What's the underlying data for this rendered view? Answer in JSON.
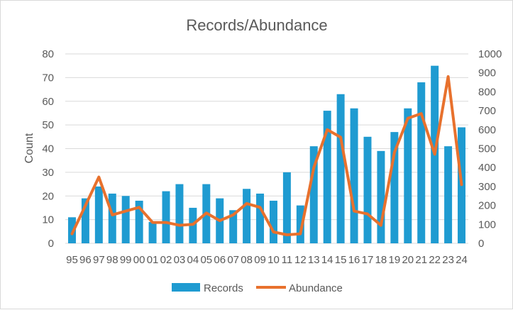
{
  "chart_data": {
    "type": "bar",
    "title": "Records/Abundance",
    "ylabel": "Count",
    "y2label": "",
    "xlabel": "",
    "categories": [
      "95",
      "96",
      "97",
      "98",
      "99",
      "00",
      "01",
      "02",
      "03",
      "04",
      "05",
      "06",
      "07",
      "08",
      "09",
      "10",
      "11",
      "12",
      "13",
      "14",
      "15",
      "16",
      "17",
      "18",
      "19",
      "20",
      "21",
      "22",
      "23",
      "24"
    ],
    "series": [
      {
        "name": "Records",
        "type": "bar",
        "axis": "left",
        "color": "#1f9bd1",
        "values": [
          11,
          19,
          24,
          21,
          20,
          18,
          9,
          22,
          25,
          15,
          25,
          19,
          14,
          23,
          21,
          18,
          30,
          16,
          41,
          56,
          63,
          57,
          45,
          39,
          47,
          57,
          68,
          75,
          41,
          49
        ]
      },
      {
        "name": "Abundance",
        "type": "line",
        "axis": "right",
        "color": "#e8712d",
        "values": [
          50,
          200,
          350,
          150,
          170,
          190,
          110,
          110,
          95,
          100,
          160,
          120,
          150,
          210,
          190,
          60,
          45,
          50,
          400,
          600,
          560,
          170,
          155,
          95,
          480,
          660,
          685,
          470,
          880,
          310
        ]
      }
    ],
    "y_left": {
      "min": 0,
      "max": 80,
      "ticks": [
        0,
        10,
        20,
        30,
        40,
        50,
        60,
        70,
        80
      ]
    },
    "y_right": {
      "min": 0,
      "max": 1000,
      "ticks": [
        0,
        100,
        200,
        300,
        400,
        500,
        600,
        700,
        800,
        900,
        1000
      ]
    },
    "grid": true,
    "legend": "bottom"
  }
}
